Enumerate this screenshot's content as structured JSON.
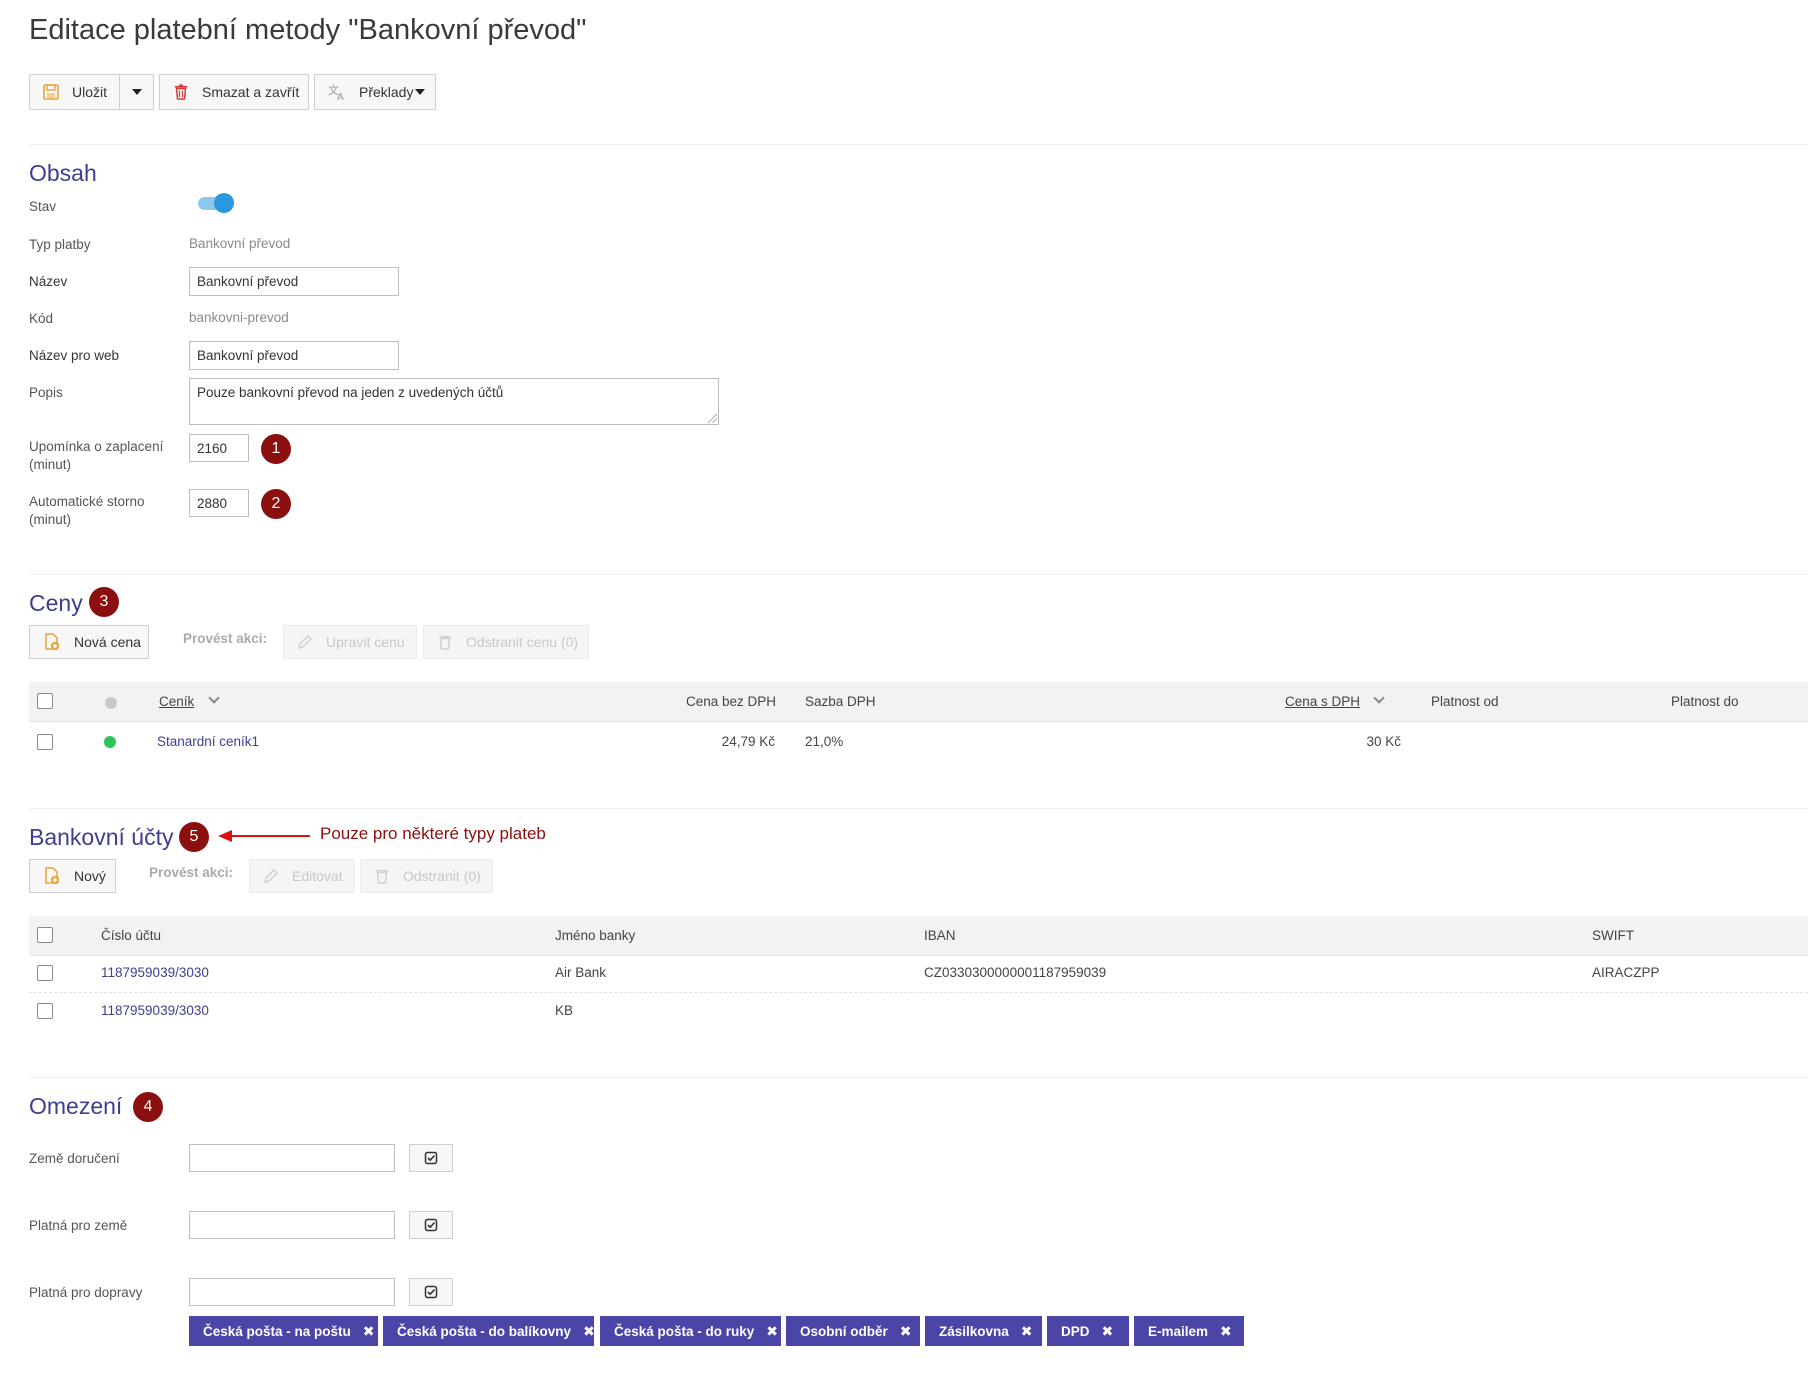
{
  "page": {
    "title": "Editace platební metody \"Bankovní převod\""
  },
  "toolbar": {
    "save_label": "Uložit",
    "delete_label": "Smazat a zavřít",
    "translations_label": "Překlady"
  },
  "obsah": {
    "title": "Obsah",
    "stav_label": "Stav",
    "stav_on": true,
    "typ_label": "Typ platby",
    "typ_value": "Bankovní převod",
    "nazev_label": "Název",
    "nazev_value": "Bankovní převod",
    "kod_label": "Kód",
    "kod_value": "bankovni-prevod",
    "web_label": "Název pro web",
    "web_value": "Bankovní převod",
    "popis_label": "Popis",
    "popis_value": "Pouze bankovní převod na jeden z uvedených účtů",
    "reminder_label_1": "Upomínka o zaplacení",
    "reminder_label_2": "(minut)",
    "reminder_value": "2160",
    "storno_label_1": "Automatické storno",
    "storno_label_2": "(minut)",
    "storno_value": "2880",
    "badge_1": "1",
    "badge_2": "2"
  },
  "ceny": {
    "title": "Ceny",
    "badge": "3",
    "new_label": "Nová cena",
    "action_label": "Provést akci:",
    "edit_label": "Upravit cenu",
    "remove_label": "Odstranit cenu (0)",
    "columns": {
      "cenik": "Ceník",
      "cena_bez": "Cena bez DPH",
      "sazba": "Sazba DPH",
      "cena_s": "Cena s DPH",
      "od": "Platnost od",
      "do": "Platnost do"
    },
    "rows": [
      {
        "cenik": "Stanardní ceník1",
        "cena_bez": "24,79 Kč",
        "sazba": "21,0%",
        "cena_s": "30 Kč",
        "od": "",
        "do": "",
        "status_color": "#2ec45c"
      }
    ],
    "header_dot_color": "#c8c8c8"
  },
  "ucty": {
    "title": "Bankovní účty",
    "badge": "5",
    "annotation": "Pouze pro některé typy plateb",
    "new_label": "Nový",
    "action_label": "Provést akci:",
    "edit_label": "Editovat",
    "remove_label": "Odstranit (0)",
    "columns": {
      "cislo": "Číslo účtu",
      "banka": "Jméno banky",
      "iban": "IBAN",
      "swift": "SWIFT"
    },
    "rows": [
      {
        "cislo": "1187959039/3030",
        "banka": "Air Bank",
        "iban": "CZ0330300000001187959039",
        "swift": "AIRACZPP"
      },
      {
        "cislo": "1187959039/3030",
        "banka": "KB",
        "iban": "",
        "swift": ""
      }
    ]
  },
  "omezeni": {
    "title": "Omezení",
    "badge": "4",
    "zeme_label": "Země doručení",
    "platna_zeme_label": "Platná pro země",
    "dopravy_label": "Platná pro dopravy",
    "tags": [
      "Česká pošta - na poštu",
      "Česká pošta - do balíkovny",
      "Česká pošta - do ruky",
      "Osobní odběr",
      "Zásilkovna",
      "DPD",
      "E-mailem"
    ]
  },
  "colors": {
    "accent": "#3f3f8e",
    "badge": "#8b0f0f",
    "tag": "#4b45a8",
    "toggle": "#2a97e0"
  }
}
